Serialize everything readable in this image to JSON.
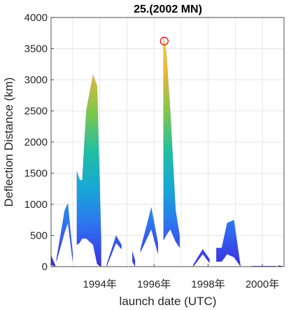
{
  "chart_data": {
    "type": "area",
    "title": "25.(2002 MN)",
    "xlabel": "launch date (UTC)",
    "ylabel": "Deflection Distance (km)",
    "xlim": [
      1992.2,
      2000.8
    ],
    "ylim": [
      0,
      4000
    ],
    "yticks": [
      0,
      500,
      1000,
      1500,
      2000,
      2500,
      3000,
      3500,
      4000
    ],
    "xticks": [
      {
        "value": 1994,
        "label": "1994年"
      },
      {
        "value": 1996,
        "label": "1996年"
      },
      {
        "value": 1998,
        "label": "1998年"
      },
      {
        "value": 2000,
        "label": "2000年"
      }
    ],
    "grid": true,
    "colormap": [
      "#3b2fe0",
      "#2f6ef0",
      "#18a6d8",
      "#1fbfa2",
      "#7cc84a",
      "#e6b736",
      "#f9d520"
    ],
    "marker": {
      "x": 1996.38,
      "y": 3620,
      "shape": "circle",
      "color": "#ff0000"
    },
    "bands": [
      {
        "x": [
          1992.2,
          1992.35
        ],
        "upper": [
          180,
          30
        ],
        "lower": [
          30,
          0
        ]
      },
      {
        "x": [
          1992.4,
          1992.7,
          1992.82,
          1993.0
        ],
        "upper": [
          120,
          900,
          1020,
          200
        ],
        "lower": [
          80,
          550,
          700,
          80
        ]
      },
      {
        "x": [
          1993.15,
          1993.25,
          1993.35,
          1993.5,
          1993.75,
          1993.9,
          1994.05
        ],
        "upper": [
          1530,
          1400,
          1380,
          2500,
          3080,
          2900,
          450
        ],
        "lower": [
          350,
          380,
          450,
          450,
          350,
          40,
          0
        ]
      },
      {
        "x": [
          1994.25,
          1994.6,
          1994.8
        ],
        "upper": [
          30,
          500,
          350
        ],
        "lower": [
          0,
          380,
          280
        ]
      },
      {
        "x": [
          1995.2,
          1995.3
        ],
        "upper": [
          250,
          100
        ],
        "lower": [
          80,
          0
        ]
      },
      {
        "x": [
          1995.5,
          1995.9,
          1996.15
        ],
        "upper": [
          280,
          950,
          380
        ],
        "lower": [
          230,
          600,
          200
        ]
      },
      {
        "x": [
          1996.35,
          1996.45,
          1996.6,
          1996.8,
          1996.95
        ],
        "upper": [
          3700,
          3450,
          2500,
          900,
          500
        ],
        "lower": [
          420,
          500,
          600,
          400,
          300
        ]
      },
      {
        "x": [
          1997.45,
          1997.8,
          1998.05
        ],
        "upper": [
          30,
          280,
          120
        ],
        "lower": [
          0,
          200,
          60
        ]
      },
      {
        "x": [
          1998.3,
          1998.5,
          1998.7,
          1998.95,
          1999.2
        ],
        "upper": [
          300,
          300,
          700,
          750,
          0
        ],
        "lower": [
          80,
          80,
          200,
          150,
          0
        ]
      },
      {
        "x": [
          1999.6,
          2000.5
        ],
        "upper": [
          8,
          8
        ],
        "lower": [
          0,
          0
        ]
      },
      {
        "x": [
          2000.6,
          2000.75
        ],
        "upper": [
          20,
          5
        ],
        "lower": [
          0,
          0
        ]
      }
    ]
  }
}
